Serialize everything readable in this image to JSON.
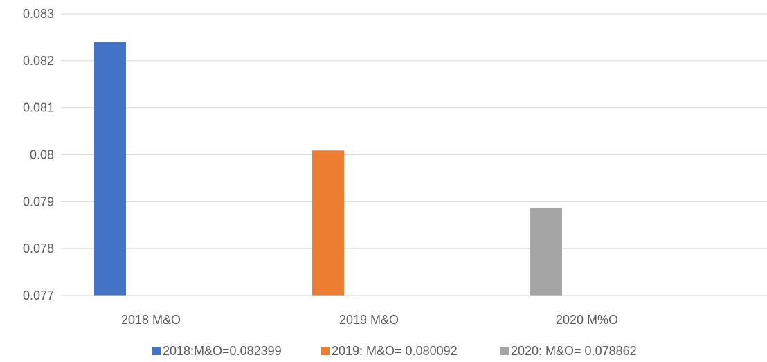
{
  "chart_data": {
    "type": "bar",
    "title": "",
    "xlabel": "",
    "ylabel": "",
    "categories": [
      "2018 M&O",
      "2019 M&O",
      "2020 M%O"
    ],
    "ylim": [
      0.077,
      0.083
    ],
    "yticks": [
      "0.077",
      "0.078",
      "0.079",
      "0.08",
      "0.081",
      "0.082",
      "0.083"
    ],
    "grid": true,
    "legend_position": "bottom",
    "series": [
      {
        "name": "2018:M&O=0.082399",
        "color": "#4472C4",
        "values": [
          0.082399,
          null,
          null
        ]
      },
      {
        "name": "2019: M&O= 0.080092",
        "color": "#ED7D31",
        "values": [
          null,
          0.080092,
          null
        ]
      },
      {
        "name": "2020: M&O= 0.078862",
        "color": "#A5A5A5",
        "values": [
          null,
          null,
          0.078862
        ]
      }
    ]
  }
}
